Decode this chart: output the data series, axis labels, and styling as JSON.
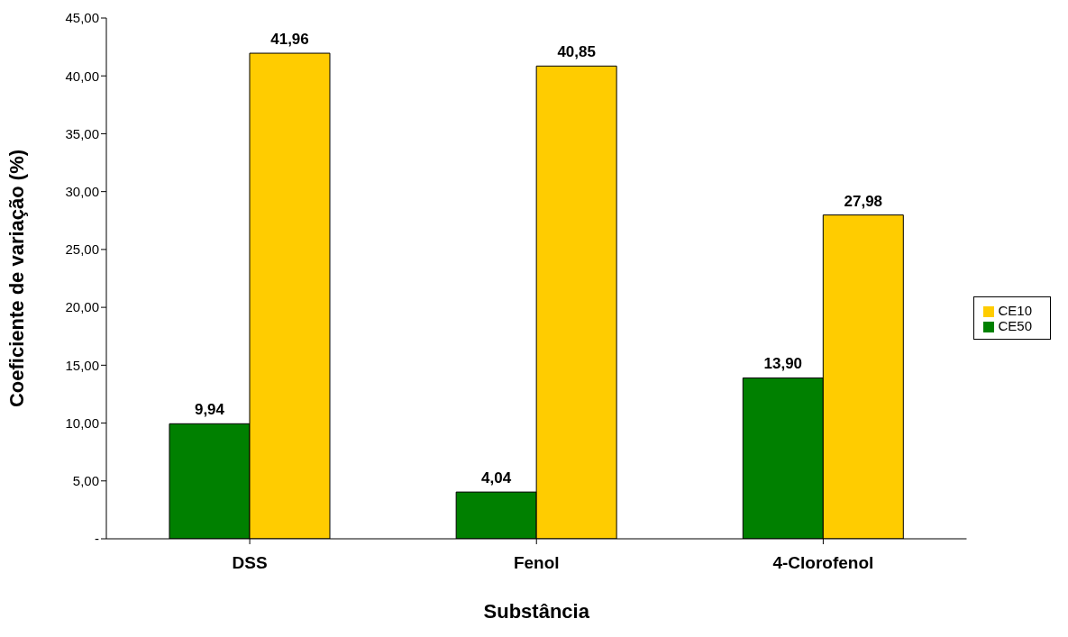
{
  "chart_data": {
    "type": "bar",
    "xlabel": "Substância",
    "ylabel": "Coeficiente de variação (%)",
    "categories": [
      "DSS",
      "Fenol",
      "4-Clorofenol"
    ],
    "series": [
      {
        "name": "CE50",
        "color": "#008000",
        "values": [
          9.94,
          4.04,
          13.9
        ],
        "value_labels": [
          "9,94",
          "4,04",
          "13,90"
        ]
      },
      {
        "name": "CE10",
        "color": "#ffcc00",
        "values": [
          41.96,
          40.85,
          27.98
        ],
        "value_labels": [
          "41,96",
          "40,85",
          "27,98"
        ]
      }
    ],
    "ylim": [
      0,
      45
    ],
    "yticks": [
      {
        "value": 0,
        "label": "-"
      },
      {
        "value": 5,
        "label": "5,00"
      },
      {
        "value": 10,
        "label": "10,00"
      },
      {
        "value": 15,
        "label": "15,00"
      },
      {
        "value": 20,
        "label": "20,00"
      },
      {
        "value": 25,
        "label": "25,00"
      },
      {
        "value": 30,
        "label": "30,00"
      },
      {
        "value": 35,
        "label": "35,00"
      },
      {
        "value": 40,
        "label": "40,00"
      },
      {
        "value": 45,
        "label": "45,00"
      }
    ],
    "grid": false,
    "legend": "right"
  }
}
